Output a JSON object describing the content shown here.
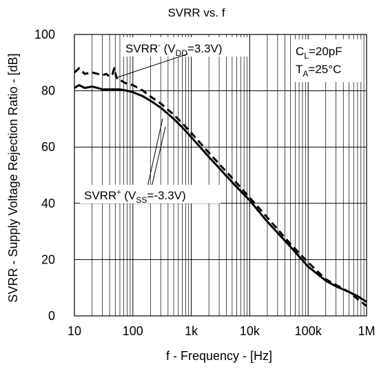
{
  "chart_data": {
    "type": "line",
    "title": "SVRR vs. f",
    "xlabel": "f - Frequency - [Hz]",
    "ylabel": "SVRR - Supply Voltage Rejection Ratio - [dB]",
    "x_scale": "log",
    "xlim": [
      10,
      1000000
    ],
    "ylim": [
      0,
      100
    ],
    "grid": true,
    "x_ticks": [
      "10",
      "100",
      "1k",
      "10k",
      "100k",
      "1M"
    ],
    "y_ticks": [
      "0",
      "20",
      "40",
      "60",
      "80",
      "100"
    ],
    "conditions": {
      "cl_label": "C",
      "cl_sub": "L",
      "cl_value": "=20pF",
      "ta_label": "T",
      "ta_sub": "A",
      "ta_value": "=25°C"
    },
    "series": [
      {
        "style": "dashed",
        "label_main": "SVRR",
        "label_sup": "-",
        "label_open": " (V",
        "label_sub": "DD",
        "label_tail": "=3.3V)",
        "x": [
          10,
          12,
          15,
          20,
          25,
          30,
          35,
          40,
          45,
          48,
          52,
          55,
          60,
          70,
          80,
          100,
          150,
          200,
          300,
          500,
          700,
          1000,
          2000,
          5000,
          10000,
          20000,
          50000,
          100000,
          200000,
          300000,
          500000,
          700000,
          1000000
        ],
        "y": [
          86.5,
          88,
          86,
          86.5,
          86,
          85.5,
          86,
          85,
          86,
          88,
          85,
          84,
          84,
          83,
          82.5,
          82,
          80,
          78,
          75.5,
          71.5,
          68.5,
          65,
          58,
          49,
          42,
          35,
          25.5,
          19,
          13,
          11,
          8.5,
          6,
          3.5
        ]
      },
      {
        "style": "solid",
        "label_main": "SVRR",
        "label_sup": "+",
        "label_open": " (V",
        "label_sub": "SS",
        "label_tail": "=-3.3V)",
        "x": [
          10,
          12,
          15,
          20,
          25,
          30,
          40,
          50,
          60,
          80,
          100,
          150,
          200,
          300,
          500,
          700,
          1000,
          2000,
          5000,
          10000,
          20000,
          50000,
          100000,
          200000,
          300000,
          500000,
          700000,
          1000000
        ],
        "y": [
          81,
          82,
          81,
          81.5,
          81,
          80.5,
          80.5,
          80.5,
          80.5,
          80,
          79.5,
          78,
          76.5,
          74,
          70,
          67,
          63.5,
          56.5,
          47.5,
          41,
          33.5,
          24.5,
          17.5,
          12.5,
          10.5,
          8.5,
          7,
          5
        ]
      }
    ]
  }
}
